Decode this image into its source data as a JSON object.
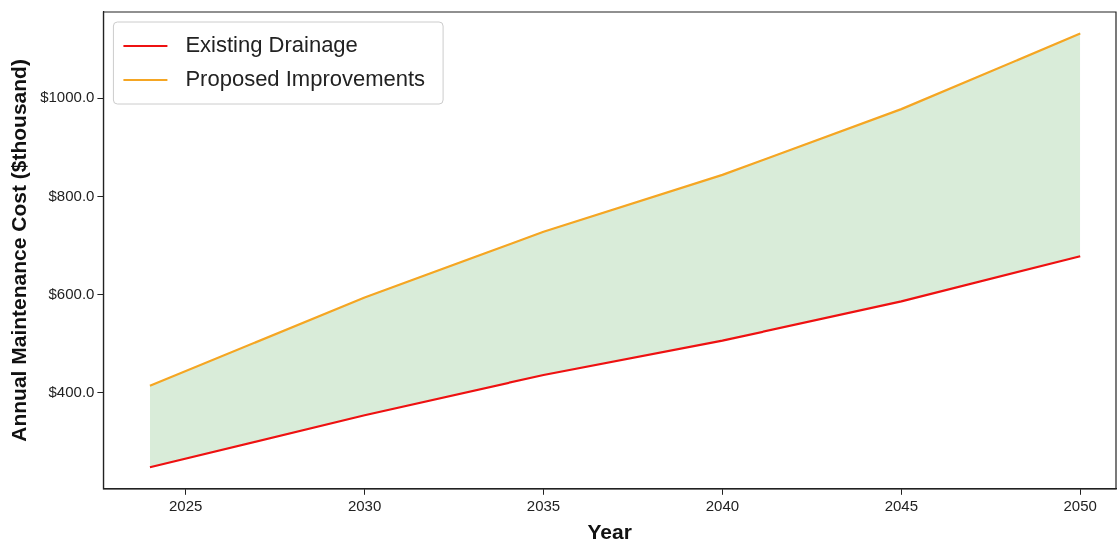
{
  "chart_data": {
    "type": "line",
    "xlabel": "Year",
    "ylabel": "Annual Maintenance Cost ($thousand)",
    "x": [
      2024,
      2030,
      2035,
      2040,
      2045,
      2050
    ],
    "series": [
      {
        "name": "Existing Drainage",
        "color": "#ee1111",
        "values": [
          248,
          354,
          436,
          506,
          586,
          678
        ]
      },
      {
        "name": "Proposed Improvements",
        "color": "#f5a623",
        "values": [
          414,
          594,
          728,
          844,
          978,
          1132
        ],
        "lower": [
          248,
          354,
          436,
          506,
          586,
          678
        ],
        "upper": [
          414,
          594,
          728,
          844,
          978,
          1132
        ]
      }
    ],
    "xlim": [
      2022.7,
      2051
    ],
    "xticks": [
      2025,
      2030,
      2035,
      2040,
      2045,
      2050
    ],
    "ylim": [
      204,
      1176
    ],
    "yticks": [
      {
        "value": 400,
        "label": "$400.0"
      },
      {
        "value": 600,
        "label": "$600.0"
      },
      {
        "value": 800,
        "label": "$800.0"
      },
      {
        "value": 1000,
        "label": "$1000.0"
      }
    ],
    "grid": false,
    "legend": "top left",
    "marker": "none",
    "line_style": "solid"
  }
}
